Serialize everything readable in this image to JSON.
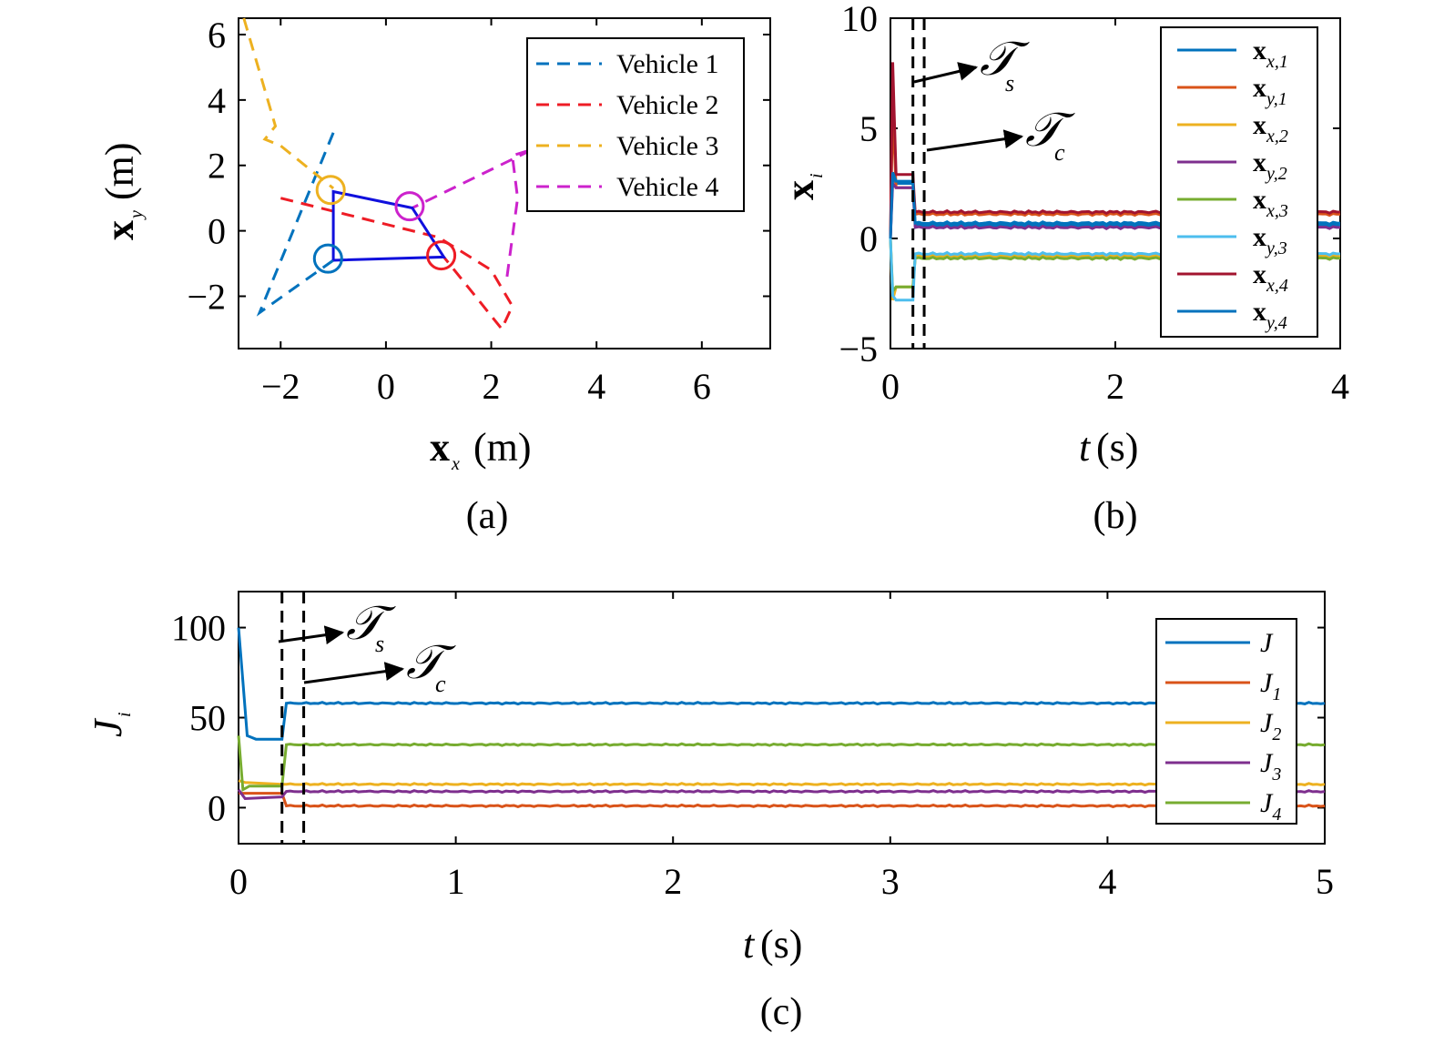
{
  "colors": {
    "blue": "#0072BD",
    "orange": "#D95319",
    "yellow": "#EDB120",
    "purple": "#7E2F8E",
    "green": "#77AC30",
    "lightblue": "#4DBEEE",
    "darkred": "#A2142F",
    "red": "#EE1C25",
    "magenta": "#CC22CC",
    "formation": "#1010DD"
  },
  "chart_data": [
    {
      "type": "line",
      "panel": "a",
      "caption": "(a)",
      "xlabel": "x_x (m)",
      "ylabel": "x_y (m)",
      "xlim": [
        -2.8,
        7.3
      ],
      "ylim": [
        -3.6,
        6.5
      ],
      "xticks": [
        -2,
        0,
        2,
        4,
        6
      ],
      "xtick_labels": [
        "−2",
        "0",
        "2",
        "4",
        "6"
      ],
      "yticks": [
        -2,
        0,
        2,
        4,
        6
      ],
      "ytick_labels": [
        "−2",
        "0",
        "2",
        "4",
        "6"
      ],
      "legend_position": "top-right",
      "series": [
        {
          "name": "Vehicle 1",
          "color": "#0072BD",
          "dash": true,
          "x": [
            -1.0,
            -2.4,
            -1.0
          ],
          "y": [
            3.0,
            -2.5,
            -0.9
          ]
        },
        {
          "name": "Vehicle 2",
          "color": "#EE1C25",
          "dash": true,
          "x": [
            -2.0,
            1.0,
            2.0,
            2.4,
            2.2,
            1.1
          ],
          "y": [
            1.0,
            -0.2,
            -1.2,
            -2.3,
            -3.0,
            -0.8
          ]
        },
        {
          "name": "Vehicle 3",
          "color": "#EDB120",
          "dash": true,
          "x": [
            -2.7,
            -2.1,
            -2.3,
            -2.0,
            -1.0
          ],
          "y": [
            6.5,
            3.2,
            2.8,
            2.6,
            1.3
          ]
        },
        {
          "name": "Vehicle 4",
          "color": "#CC22CC",
          "dash": true,
          "x": [
            2.3,
            2.5,
            2.4,
            2.8,
            0.5
          ],
          "y": [
            -1.4,
            1.0,
            2.3,
            2.5,
            0.7
          ]
        }
      ],
      "formation": {
        "color": "#1010DD",
        "x": [
          -1.0,
          1.1,
          0.5,
          -1.0,
          -1.0
        ],
        "y": [
          -0.9,
          -0.8,
          0.7,
          1.2,
          -0.9
        ]
      },
      "markers": [
        {
          "x": -1.1,
          "y": -0.85,
          "color": "#0072BD"
        },
        {
          "x": 1.05,
          "y": -0.75,
          "color": "#EE1C25"
        },
        {
          "x": -1.05,
          "y": 1.25,
          "color": "#EDB120"
        },
        {
          "x": 0.45,
          "y": 0.75,
          "color": "#CC22CC"
        }
      ]
    },
    {
      "type": "line",
      "panel": "b",
      "caption": "(b)",
      "xlabel": "t (s)",
      "ylabel": "x_i",
      "xlim": [
        0,
        4
      ],
      "ylim": [
        -5,
        10
      ],
      "xticks": [
        0,
        2,
        4
      ],
      "xtick_labels": [
        "0",
        "2",
        "4"
      ],
      "yticks": [
        -5,
        0,
        5,
        10
      ],
      "ytick_labels": [
        "−5",
        "0",
        "5",
        "10"
      ],
      "vlines": [
        0.2,
        0.3
      ],
      "annotations": [
        {
          "label": "T",
          "sub": "s"
        },
        {
          "label": "T",
          "sub": "c"
        }
      ],
      "legend_position": "top-right",
      "series": [
        {
          "name": "x_{x,1}",
          "color": "#0072BD",
          "x": [
            0,
            0.02,
            0.05,
            0.2,
            0.22,
            4
          ],
          "y": [
            0,
            2.8,
            2.5,
            2.5,
            0.6,
            0.6
          ]
        },
        {
          "name": "x_{y,1}",
          "color": "#D95319",
          "x": [
            0,
            0.02,
            0.05,
            0.2,
            0.22,
            4
          ],
          "y": [
            0,
            6.0,
            2.3,
            2.3,
            1.1,
            1.1
          ]
        },
        {
          "name": "x_{x,2}",
          "color": "#EDB120",
          "x": [
            0,
            0.02,
            0.05,
            0.2,
            0.22,
            4
          ],
          "y": [
            0,
            -2.8,
            -2.2,
            -2.2,
            -0.8,
            -0.8
          ]
        },
        {
          "name": "x_{y,2}",
          "color": "#7E2F8E",
          "x": [
            0,
            0.02,
            0.05,
            0.2,
            0.22,
            4
          ],
          "y": [
            0,
            2.5,
            2.3,
            2.3,
            0.5,
            0.5
          ]
        },
        {
          "name": "x_{x,3}",
          "color": "#77AC30",
          "x": [
            0,
            0.02,
            0.05,
            0.2,
            0.22,
            4
          ],
          "y": [
            0,
            -2.4,
            -2.2,
            -2.2,
            -0.9,
            -0.9
          ]
        },
        {
          "name": "x_{y,3}",
          "color": "#4DBEEE",
          "x": [
            0,
            0.02,
            0.05,
            0.2,
            0.22,
            4
          ],
          "y": [
            0,
            -2.6,
            -2.8,
            -2.8,
            -0.7,
            -0.7
          ]
        },
        {
          "name": "x_{x,4}",
          "color": "#A2142F",
          "x": [
            0,
            0.02,
            0.05,
            0.2,
            0.22,
            4
          ],
          "y": [
            0,
            8.0,
            2.9,
            2.9,
            1.2,
            1.2
          ]
        },
        {
          "name": "x_{y,4}",
          "color": "#0072BD",
          "x": [
            0,
            0.02,
            0.05,
            0.2,
            0.22,
            4
          ],
          "y": [
            0,
            3.0,
            2.6,
            2.6,
            0.7,
            0.7
          ]
        }
      ]
    },
    {
      "type": "line",
      "panel": "c",
      "caption": "(c)",
      "xlabel": "t (s)",
      "ylabel": "J_i",
      "xlim": [
        0,
        5
      ],
      "ylim": [
        -20,
        120
      ],
      "xticks": [
        0,
        1,
        2,
        3,
        4,
        5
      ],
      "xtick_labels": [
        "0",
        "1",
        "2",
        "3",
        "4",
        "5"
      ],
      "yticks": [
        0,
        50,
        100
      ],
      "ytick_labels": [
        "0",
        "50",
        "100"
      ],
      "vlines": [
        0.2,
        0.3
      ],
      "annotations": [
        {
          "label": "T",
          "sub": "s"
        },
        {
          "label": "T",
          "sub": "c"
        }
      ],
      "legend_position": "right",
      "series": [
        {
          "name": "J",
          "color": "#0072BD",
          "x": [
            0,
            0.04,
            0.08,
            0.2,
            0.22,
            5
          ],
          "y": [
            100,
            40,
            38,
            38,
            58,
            58
          ]
        },
        {
          "name": "J_1",
          "color": "#D95319",
          "x": [
            0,
            0.03,
            0.2,
            0.22,
            5
          ],
          "y": [
            8,
            8,
            8,
            1,
            1
          ]
        },
        {
          "name": "J_2",
          "color": "#EDB120",
          "x": [
            0,
            0.03,
            0.2,
            0.22,
            5
          ],
          "y": [
            15,
            14,
            13,
            13,
            13
          ]
        },
        {
          "name": "J_3",
          "color": "#7E2F8E",
          "x": [
            0,
            0.03,
            0.2,
            0.22,
            5
          ],
          "y": [
            10,
            5,
            6,
            9,
            9
          ]
        },
        {
          "name": "J_4",
          "color": "#77AC30",
          "x": [
            0,
            0.02,
            0.05,
            0.2,
            0.22,
            5
          ],
          "y": [
            40,
            10,
            12,
            12,
            35,
            35
          ]
        }
      ]
    }
  ]
}
